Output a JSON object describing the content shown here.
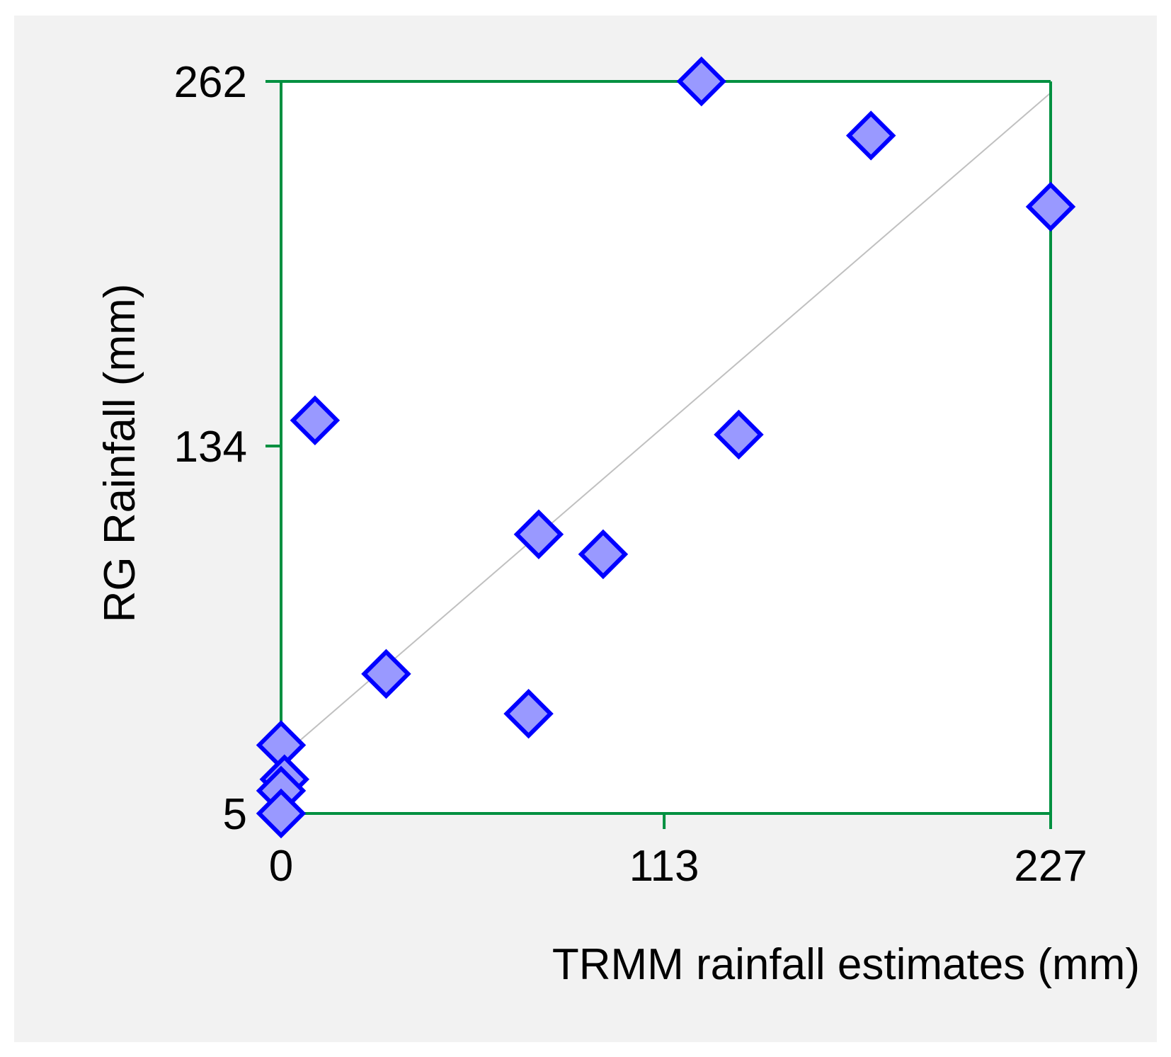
{
  "colors": {
    "background_panel": "#f2f2f2",
    "plot_area": "#ffffff",
    "axis_frame": "#009040",
    "marker_fill": "#9999ff",
    "marker_stroke": "#0000ff",
    "trend_line": "#c0c0c0",
    "text": "#000000"
  },
  "chart_data": {
    "type": "scatter",
    "title": "",
    "xlabel": "TRMM rainfall estimates (mm)",
    "ylabel": "RG Rainfall (mm)",
    "xlim": [
      0,
      227
    ],
    "ylim": [
      5,
      262
    ],
    "x_ticks": [
      0,
      113,
      227
    ],
    "y_ticks": [
      5,
      134,
      262
    ],
    "x_tick_labels": [
      "0",
      "113",
      "227"
    ],
    "y_tick_labels": [
      "5",
      "134",
      "262"
    ],
    "grid": false,
    "legend": "none",
    "marker": "diamond",
    "points": [
      {
        "x": 124,
        "y": 262
      },
      {
        "x": 174,
        "y": 243
      },
      {
        "x": 227,
        "y": 218
      },
      {
        "x": 10,
        "y": 143
      },
      {
        "x": 135,
        "y": 138
      },
      {
        "x": 76,
        "y": 103
      },
      {
        "x": 95,
        "y": 96
      },
      {
        "x": 31,
        "y": 54
      },
      {
        "x": 73,
        "y": 40
      },
      {
        "x": 0,
        "y": 29
      },
      {
        "x": 1,
        "y": 17
      },
      {
        "x": 0,
        "y": 13
      },
      {
        "x": 0,
        "y": 5
      }
    ],
    "trendline": {
      "x": [
        3,
        227
      ],
      "y": [
        28,
        258
      ]
    }
  }
}
